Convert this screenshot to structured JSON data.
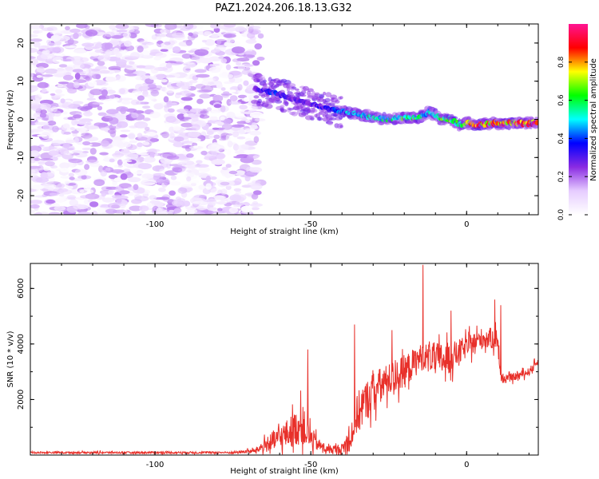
{
  "title": "PAZ1.2024.206.18.13.G32",
  "chart_data": [
    {
      "type": "heatmap",
      "xlabel": "Height of straight line (km)",
      "ylabel": "Frequency (Hz)",
      "xlim": [
        -140,
        23
      ],
      "ylim": [
        -25,
        25
      ],
      "x_ticks": [
        -100,
        -50,
        0
      ],
      "y_ticks": [
        -20,
        -10,
        0,
        10,
        20
      ],
      "colorbar": {
        "label": "Normalized spectral amplitude",
        "range": [
          0,
          1
        ],
        "ticks": [
          0.0,
          0.2,
          0.4,
          0.6,
          0.8
        ],
        "colormap": [
          "#ffffff",
          "#e6ccff",
          "#8a2be2",
          "#0000ff",
          "#00ffff",
          "#00ff00",
          "#ffff00",
          "#ff0000",
          "#ff1493"
        ]
      },
      "ridge": {
        "x": [
          -68,
          -62,
          -58,
          -55,
          -50,
          -45,
          -40,
          -35,
          -30,
          -25,
          -20,
          -15,
          -12,
          -8,
          -5,
          -2,
          0,
          3,
          8,
          15,
          20,
          23
        ],
        "frequency": [
          8,
          7,
          6,
          5,
          4,
          3,
          2,
          1.5,
          0.5,
          0,
          0.5,
          0.5,
          2,
          0,
          0,
          -1.5,
          -1,
          -1.5,
          -1,
          -1,
          -1,
          -1
        ],
        "amplitude": [
          0.25,
          0.4,
          0.35,
          0.3,
          0.3,
          0.35,
          0.45,
          0.55,
          0.6,
          0.55,
          0.65,
          0.6,
          0.5,
          0.65,
          0.7,
          0.6,
          0.8,
          0.9,
          0.85,
          0.9,
          0.9,
          0.9
        ]
      },
      "noise_region_x": [
        -140,
        -68
      ],
      "noise_amplitude_max": 0.12
    },
    {
      "type": "line",
      "xlabel": "Height of straight line (km)",
      "ylabel": "SNR (10 * v/v)",
      "xlim": [
        -140,
        23
      ],
      "ylim": [
        0,
        6900
      ],
      "x_ticks": [
        -100,
        -50,
        0
      ],
      "y_ticks": [
        2000,
        4000,
        6000
      ],
      "color": "#e8302a",
      "envelope": {
        "x": [
          -140,
          -75,
          -68,
          -62,
          -57,
          -53,
          -50,
          -48,
          -45,
          -40,
          -37,
          -35,
          -30,
          -25,
          -20,
          -15,
          -12,
          -10,
          -5,
          0,
          5,
          10,
          11,
          15,
          20,
          23
        ],
        "base": [
          90,
          90,
          150,
          500,
          800,
          1100,
          600,
          400,
          200,
          200,
          700,
          1500,
          2300,
          2700,
          3000,
          3500,
          3600,
          3400,
          3500,
          3900,
          4200,
          4200,
          2700,
          2800,
          3000,
          3400
        ],
        "amp": [
          60,
          70,
          150,
          700,
          1000,
          1300,
          900,
          450,
          250,
          400,
          1000,
          1400,
          1300,
          1100,
          1100,
          900,
          800,
          1200,
          1000,
          700,
          700,
          700,
          250,
          250,
          250,
          250
        ]
      },
      "peaks": [
        {
          "x": -51,
          "y": 3800
        },
        {
          "x": -36,
          "y": 4700
        },
        {
          "x": -24,
          "y": 4500
        },
        {
          "x": -14,
          "y": 6850
        },
        {
          "x": -5,
          "y": 5200
        },
        {
          "x": 9,
          "y": 5600
        },
        {
          "x": 11,
          "y": 5400
        }
      ]
    }
  ]
}
